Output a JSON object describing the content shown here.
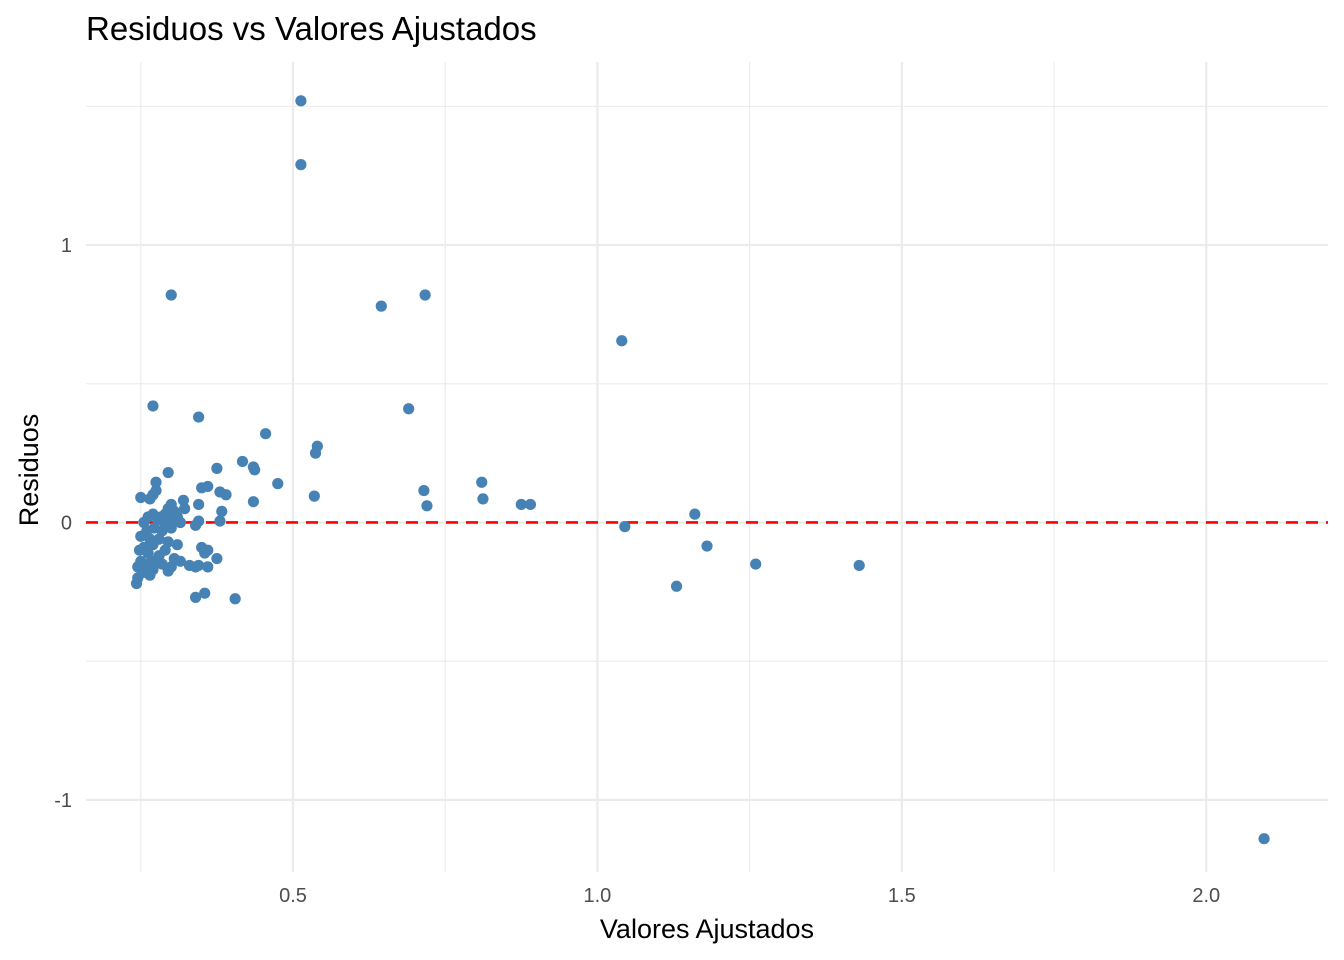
{
  "chart_data": {
    "type": "scatter",
    "title": "Residuos vs Valores Ajustados",
    "xlabel": "Valores Ajustados",
    "ylabel": "Residuos",
    "xlim": [
      0.16,
      2.2
    ],
    "ylim": [
      -1.26,
      1.66
    ],
    "x_ticks": [
      0.5,
      1.0,
      1.5,
      2.0
    ],
    "x_tick_labels": [
      "0.5",
      "1.0",
      "1.5",
      "2.0"
    ],
    "y_ticks": [
      -1,
      0,
      1
    ],
    "y_tick_labels": [
      "-1",
      "0",
      "1"
    ],
    "x_minor_ticks": [
      0.25,
      0.75,
      1.25,
      1.75
    ],
    "y_minor_ticks": [
      -0.5,
      0.5,
      1.5
    ],
    "grid": true,
    "reference_line": {
      "y": 0,
      "color": "#ff0000",
      "style": "dashed"
    },
    "point_color": "#4682b4",
    "points": [
      {
        "x": 0.513,
        "y": 1.52
      },
      {
        "x": 0.513,
        "y": 1.29
      },
      {
        "x": 0.3,
        "y": 0.82
      },
      {
        "x": 0.645,
        "y": 0.78
      },
      {
        "x": 0.717,
        "y": 0.82
      },
      {
        "x": 1.04,
        "y": 0.655
      },
      {
        "x": 0.27,
        "y": 0.42
      },
      {
        "x": 0.345,
        "y": 0.38
      },
      {
        "x": 0.69,
        "y": 0.41
      },
      {
        "x": 0.455,
        "y": 0.32
      },
      {
        "x": 0.54,
        "y": 0.275
      },
      {
        "x": 0.537,
        "y": 0.25
      },
      {
        "x": 0.417,
        "y": 0.22
      },
      {
        "x": 0.435,
        "y": 0.2
      },
      {
        "x": 0.437,
        "y": 0.19
      },
      {
        "x": 0.375,
        "y": 0.195
      },
      {
        "x": 0.295,
        "y": 0.18
      },
      {
        "x": 0.275,
        "y": 0.145
      },
      {
        "x": 0.475,
        "y": 0.14
      },
      {
        "x": 0.36,
        "y": 0.13
      },
      {
        "x": 0.35,
        "y": 0.125
      },
      {
        "x": 0.38,
        "y": 0.11
      },
      {
        "x": 0.39,
        "y": 0.1
      },
      {
        "x": 0.275,
        "y": 0.115
      },
      {
        "x": 0.27,
        "y": 0.1
      },
      {
        "x": 0.265,
        "y": 0.085
      },
      {
        "x": 0.25,
        "y": 0.09
      },
      {
        "x": 0.535,
        "y": 0.095
      },
      {
        "x": 0.435,
        "y": 0.075
      },
      {
        "x": 0.345,
        "y": 0.065
      },
      {
        "x": 0.3,
        "y": 0.065
      },
      {
        "x": 0.32,
        "y": 0.08
      },
      {
        "x": 0.322,
        "y": 0.05
      },
      {
        "x": 0.383,
        "y": 0.04
      },
      {
        "x": 0.295,
        "y": 0.05
      },
      {
        "x": 0.305,
        "y": 0.04
      },
      {
        "x": 0.29,
        "y": 0.03
      },
      {
        "x": 0.283,
        "y": 0.02
      },
      {
        "x": 0.31,
        "y": 0.02
      },
      {
        "x": 0.27,
        "y": 0.03
      },
      {
        "x": 0.262,
        "y": 0.02
      },
      {
        "x": 0.278,
        "y": 0.01
      },
      {
        "x": 0.3,
        "y": 0.005
      },
      {
        "x": 0.315,
        "y": 0.0
      },
      {
        "x": 0.345,
        "y": 0.005
      },
      {
        "x": 0.38,
        "y": 0.005
      },
      {
        "x": 0.255,
        "y": 0.0
      },
      {
        "x": 0.29,
        "y": -0.01
      },
      {
        "x": 0.34,
        "y": -0.01
      },
      {
        "x": 0.272,
        "y": -0.02
      },
      {
        "x": 0.3,
        "y": -0.02
      },
      {
        "x": 0.285,
        "y": -0.03
      },
      {
        "x": 0.26,
        "y": -0.03
      },
      {
        "x": 0.25,
        "y": -0.05
      },
      {
        "x": 0.265,
        "y": -0.06
      },
      {
        "x": 0.28,
        "y": -0.06
      },
      {
        "x": 0.295,
        "y": -0.07
      },
      {
        "x": 0.31,
        "y": -0.08
      },
      {
        "x": 0.27,
        "y": -0.08
      },
      {
        "x": 0.255,
        "y": -0.09
      },
      {
        "x": 0.29,
        "y": -0.1
      },
      {
        "x": 0.248,
        "y": -0.1
      },
      {
        "x": 0.262,
        "y": -0.11
      },
      {
        "x": 0.28,
        "y": -0.12
      },
      {
        "x": 0.305,
        "y": -0.13
      },
      {
        "x": 0.27,
        "y": -0.14
      },
      {
        "x": 0.25,
        "y": -0.14
      },
      {
        "x": 0.315,
        "y": -0.14
      },
      {
        "x": 0.26,
        "y": -0.15
      },
      {
        "x": 0.285,
        "y": -0.15
      },
      {
        "x": 0.3,
        "y": -0.16
      },
      {
        "x": 0.245,
        "y": -0.16
      },
      {
        "x": 0.27,
        "y": -0.17
      },
      {
        "x": 0.295,
        "y": -0.175
      },
      {
        "x": 0.255,
        "y": -0.18
      },
      {
        "x": 0.265,
        "y": -0.19
      },
      {
        "x": 0.245,
        "y": -0.2
      },
      {
        "x": 0.243,
        "y": -0.22
      },
      {
        "x": 0.35,
        "y": -0.09
      },
      {
        "x": 0.36,
        "y": -0.1
      },
      {
        "x": 0.355,
        "y": -0.11
      },
      {
        "x": 0.375,
        "y": -0.13
      },
      {
        "x": 0.33,
        "y": -0.155
      },
      {
        "x": 0.345,
        "y": -0.155
      },
      {
        "x": 0.34,
        "y": -0.16
      },
      {
        "x": 0.36,
        "y": -0.16
      },
      {
        "x": 0.34,
        "y": -0.27
      },
      {
        "x": 0.355,
        "y": -0.255
      },
      {
        "x": 0.405,
        "y": -0.275
      },
      {
        "x": 0.715,
        "y": 0.115
      },
      {
        "x": 0.81,
        "y": 0.145
      },
      {
        "x": 0.812,
        "y": 0.085
      },
      {
        "x": 0.72,
        "y": 0.06
      },
      {
        "x": 0.875,
        "y": 0.065
      },
      {
        "x": 0.89,
        "y": 0.065
      },
      {
        "x": 1.045,
        "y": -0.015
      },
      {
        "x": 1.16,
        "y": 0.03
      },
      {
        "x": 1.18,
        "y": -0.085
      },
      {
        "x": 1.13,
        "y": -0.23
      },
      {
        "x": 1.26,
        "y": -0.15
      },
      {
        "x": 1.43,
        "y": -0.155
      },
      {
        "x": 2.095,
        "y": -1.14
      }
    ]
  }
}
